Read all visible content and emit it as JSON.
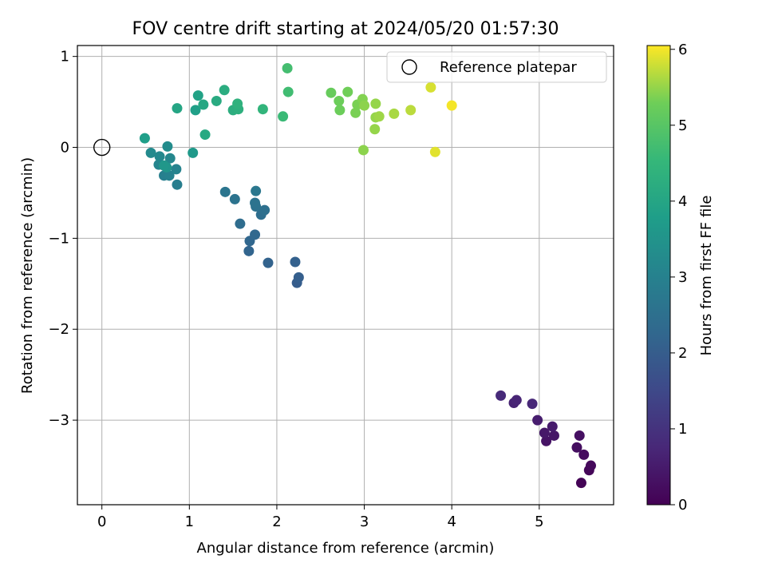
{
  "chart_data": {
    "type": "scatter",
    "title": "FOV centre drift starting at 2024/05/20 01:57:30",
    "xlabel": "Angular distance from reference (arcmin)",
    "ylabel": "Rotation from reference (arcmin)",
    "xlim": [
      -0.28,
      5.85
    ],
    "ylim": [
      -3.93,
      1.12
    ],
    "xticks": [
      0,
      1,
      2,
      3,
      4,
      5
    ],
    "yticks": [
      -3,
      -2,
      -1,
      0,
      1
    ],
    "grid": true,
    "legend": {
      "position": "top-right",
      "entries": [
        "Reference platepar"
      ]
    },
    "reference_point": {
      "x": 0,
      "y": 0
    },
    "colorbar": {
      "label": "Hours from first FF file",
      "range": [
        0,
        6.05
      ],
      "ticks": [
        0,
        1,
        2,
        3,
        4,
        5,
        6
      ],
      "colormap": "viridis"
    },
    "points": [
      {
        "x": 5.48,
        "y": -3.69,
        "hours": 0.05
      },
      {
        "x": 5.57,
        "y": -3.55,
        "hours": 0.1
      },
      {
        "x": 5.59,
        "y": -3.5,
        "hours": 0.15
      },
      {
        "x": 5.51,
        "y": -3.38,
        "hours": 0.2
      },
      {
        "x": 5.43,
        "y": -3.3,
        "hours": 0.25
      },
      {
        "x": 5.46,
        "y": -3.17,
        "hours": 0.3
      },
      {
        "x": 5.08,
        "y": -3.23,
        "hours": 0.35
      },
      {
        "x": 5.17,
        "y": -3.17,
        "hours": 0.4
      },
      {
        "x": 5.06,
        "y": -3.14,
        "hours": 0.45
      },
      {
        "x": 5.15,
        "y": -3.07,
        "hours": 0.5
      },
      {
        "x": 4.98,
        "y": -3.0,
        "hours": 0.55
      },
      {
        "x": 4.71,
        "y": -2.81,
        "hours": 0.65
      },
      {
        "x": 4.74,
        "y": -2.78,
        "hours": 0.7
      },
      {
        "x": 4.92,
        "y": -2.82,
        "hours": 0.75
      },
      {
        "x": 4.56,
        "y": -2.73,
        "hours": 0.8
      },
      {
        "x": 2.23,
        "y": -1.49,
        "hours": 2.0
      },
      {
        "x": 2.25,
        "y": -1.43,
        "hours": 2.05
      },
      {
        "x": 2.21,
        "y": -1.26,
        "hours": 2.1
      },
      {
        "x": 1.9,
        "y": -1.27,
        "hours": 2.15
      },
      {
        "x": 1.68,
        "y": -1.14,
        "hours": 2.2
      },
      {
        "x": 1.69,
        "y": -1.03,
        "hours": 2.25
      },
      {
        "x": 1.75,
        "y": -0.96,
        "hours": 2.3
      },
      {
        "x": 1.58,
        "y": -0.84,
        "hours": 2.4
      },
      {
        "x": 1.82,
        "y": -0.74,
        "hours": 2.45
      },
      {
        "x": 1.86,
        "y": -0.69,
        "hours": 2.5
      },
      {
        "x": 1.76,
        "y": -0.65,
        "hours": 2.55
      },
      {
        "x": 1.75,
        "y": -0.61,
        "hours": 2.6
      },
      {
        "x": 1.52,
        "y": -0.57,
        "hours": 2.6
      },
      {
        "x": 1.41,
        "y": -0.49,
        "hours": 2.65
      },
      {
        "x": 1.76,
        "y": -0.48,
        "hours": 2.7
      },
      {
        "x": 0.86,
        "y": -0.41,
        "hours": 2.9
      },
      {
        "x": 0.71,
        "y": -0.31,
        "hours": 2.95
      },
      {
        "x": 0.77,
        "y": -0.31,
        "hours": 3.0
      },
      {
        "x": 0.85,
        "y": -0.24,
        "hours": 3.05
      },
      {
        "x": 0.65,
        "y": -0.19,
        "hours": 3.1
      },
      {
        "x": 0.78,
        "y": -0.12,
        "hours": 3.15
      },
      {
        "x": 0.66,
        "y": -0.1,
        "hours": 3.2
      },
      {
        "x": 0.56,
        "y": -0.06,
        "hours": 3.25
      },
      {
        "x": 0.75,
        "y": 0.01,
        "hours": 3.3
      },
      {
        "x": 0.74,
        "y": -0.22,
        "hours": 3.55
      },
      {
        "x": 0.71,
        "y": -0.2,
        "hours": 3.6
      },
      {
        "x": 1.04,
        "y": -0.06,
        "hours": 3.65
      },
      {
        "x": 0.49,
        "y": 0.1,
        "hours": 3.8
      },
      {
        "x": 1.07,
        "y": 0.41,
        "hours": 3.85
      },
      {
        "x": 1.1,
        "y": 0.57,
        "hours": 3.9
      },
      {
        "x": 0.86,
        "y": 0.43,
        "hours": 4.0
      },
      {
        "x": 1.16,
        "y": 0.47,
        "hours": 4.05
      },
      {
        "x": 1.18,
        "y": 0.14,
        "hours": 4.1
      },
      {
        "x": 1.31,
        "y": 0.51,
        "hours": 4.15
      },
      {
        "x": 1.4,
        "y": 0.63,
        "hours": 4.2
      },
      {
        "x": 1.5,
        "y": 0.41,
        "hours": 4.25
      },
      {
        "x": 1.56,
        "y": 0.42,
        "hours": 4.3
      },
      {
        "x": 1.55,
        "y": 0.48,
        "hours": 4.35
      },
      {
        "x": 1.84,
        "y": 0.42,
        "hours": 4.45
      },
      {
        "x": 2.07,
        "y": 0.34,
        "hours": 4.6
      },
      {
        "x": 2.13,
        "y": 0.61,
        "hours": 4.7
      },
      {
        "x": 2.12,
        "y": 0.87,
        "hours": 4.75
      },
      {
        "x": 2.62,
        "y": 0.6,
        "hours": 5.2
      },
      {
        "x": 2.71,
        "y": 0.51,
        "hours": 5.25
      },
      {
        "x": 2.72,
        "y": 0.41,
        "hours": 5.25
      },
      {
        "x": 2.81,
        "y": 0.61,
        "hours": 5.3
      },
      {
        "x": 2.9,
        "y": 0.38,
        "hours": 5.35
      },
      {
        "x": 2.92,
        "y": 0.47,
        "hours": 5.35
      },
      {
        "x": 2.98,
        "y": 0.53,
        "hours": 5.4
      },
      {
        "x": 2.99,
        "y": -0.03,
        "hours": 5.45
      },
      {
        "x": 3.0,
        "y": 0.46,
        "hours": 5.45
      },
      {
        "x": 3.13,
        "y": 0.48,
        "hours": 5.5
      },
      {
        "x": 3.13,
        "y": 0.33,
        "hours": 5.5
      },
      {
        "x": 3.12,
        "y": 0.2,
        "hours": 5.5
      },
      {
        "x": 3.17,
        "y": 0.34,
        "hours": 5.55
      },
      {
        "x": 3.34,
        "y": 0.37,
        "hours": 5.6
      },
      {
        "x": 3.53,
        "y": 0.41,
        "hours": 5.7
      },
      {
        "x": 3.76,
        "y": 0.66,
        "hours": 5.85
      },
      {
        "x": 3.81,
        "y": -0.05,
        "hours": 5.9
      },
      {
        "x": 4.0,
        "y": 0.46,
        "hours": 6.0
      }
    ]
  }
}
